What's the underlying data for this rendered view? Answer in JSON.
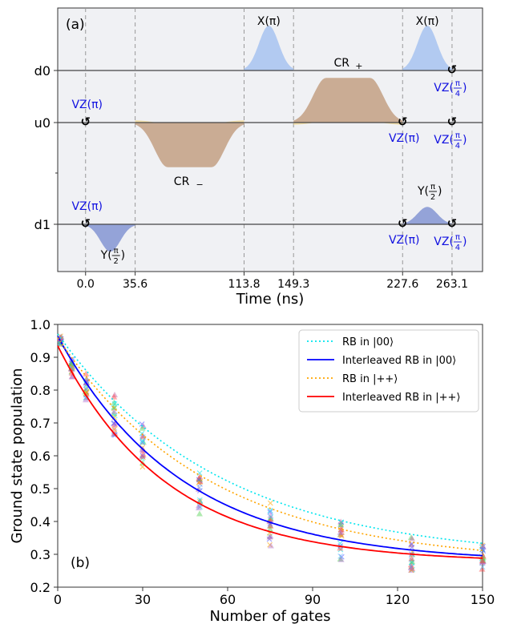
{
  "chart_data": [
    {
      "type": "area",
      "panel_label": "(a)",
      "xlabel": "Time (ns)",
      "ylabel": "",
      "xticks": [
        "0.0",
        "35.6",
        "113.8",
        "149.3",
        "227.6",
        "263.1"
      ],
      "xtick_values": [
        0.0,
        35.6,
        113.8,
        149.3,
        227.6,
        263.1
      ],
      "xlim": [
        -20,
        285
      ],
      "channels": [
        {
          "name": "d0"
        },
        {
          "name": "u0"
        },
        {
          "name": "d1"
        }
      ],
      "pulses": [
        {
          "channel": "d0",
          "label": "X(π)",
          "start": 113.8,
          "end": 149.3,
          "amp": 0.9,
          "color": "#aec7f0",
          "shape": "gaussian"
        },
        {
          "channel": "d0",
          "label": "X(π)",
          "start": 227.6,
          "end": 263.1,
          "amp": 0.9,
          "color": "#aec7f0",
          "shape": "gaussian"
        },
        {
          "channel": "u0",
          "label": "CR₋",
          "start": 35.6,
          "end": 113.8,
          "amp": -0.9,
          "color": "#c7a88e",
          "shape": "gaussian-square"
        },
        {
          "channel": "u0",
          "label": "CR₊",
          "start": 149.3,
          "end": 227.6,
          "amp": 0.9,
          "color": "#c7a88e",
          "shape": "gaussian-square"
        },
        {
          "channel": "d1",
          "label": "Y(π/2)",
          "start": 0.0,
          "end": 35.6,
          "amp": -0.55,
          "color": "#8e9ed6",
          "shape": "gaussian"
        },
        {
          "channel": "d1",
          "label": "Y(π/2)",
          "start": 227.6,
          "end": 263.1,
          "amp": 0.35,
          "color": "#8e9ed6",
          "shape": "gaussian"
        }
      ],
      "phase_annotations": [
        {
          "channel": "u0",
          "time": 0.0,
          "label": "VZ(π)",
          "position": "above"
        },
        {
          "channel": "d1",
          "time": 0.0,
          "label": "VZ(π)",
          "position": "above"
        },
        {
          "channel": "d0",
          "time": 263.1,
          "label": "VZ(π/4)",
          "position": "below"
        },
        {
          "channel": "u0",
          "time": 227.6,
          "label": "VZ(π)",
          "position": "below"
        },
        {
          "channel": "u0",
          "time": 263.1,
          "label": "VZ(π/4)",
          "position": "below"
        },
        {
          "channel": "d1",
          "time": 227.6,
          "label": "VZ(π)",
          "position": "below"
        },
        {
          "channel": "d1",
          "time": 263.1,
          "label": "VZ(π/4)",
          "position": "below"
        }
      ],
      "vz_label": "VZ(π)",
      "y_label_text": "Y(",
      "cr_minus_text": "CR",
      "cr_plus_text": "CR",
      "frac_pi": "π",
      "frac_2": "2",
      "frac_4": "4",
      "grid_verticals": "dashed at xtick times"
    },
    {
      "type": "scatter",
      "panel_label": "(b)",
      "xlabel": "Number of gates",
      "ylabel": "Ground state population",
      "xlim": [
        0,
        150
      ],
      "ylim": [
        0.2,
        1.0
      ],
      "xticks": [
        0,
        30,
        60,
        90,
        120,
        150
      ],
      "yticks": [
        0.2,
        0.3,
        0.4,
        0.5,
        0.6,
        0.7,
        0.8,
        0.9,
        1.0
      ],
      "legend_position": "top-right",
      "fit_curves": [
        {
          "name": "RB in |00⟩",
          "color": "#00e5ee",
          "style": "dotted",
          "A": 0.686,
          "p": 0.9825,
          "B": 0.285
        },
        {
          "name": "Interleaved RB in |00⟩",
          "color": "#0000ff",
          "style": "solid",
          "A": 0.69,
          "p": 0.9773,
          "B": 0.274
        },
        {
          "name": "RB in |++⟩",
          "color": "#ffa500",
          "style": "dotted",
          "A": 0.69,
          "p": 0.9815,
          "B": 0.27
        },
        {
          "name": "Interleaved RB in |++⟩",
          "color": "#ff0000",
          "style": "solid",
          "A": 0.66,
          "p": 0.9743,
          "B": 0.275
        }
      ],
      "gate_counts": [
        1,
        5,
        10,
        20,
        30,
        50,
        75,
        100,
        125,
        150
      ],
      "mean_population": [
        0.95,
        0.87,
        0.81,
        0.72,
        0.63,
        0.49,
        0.39,
        0.34,
        0.31,
        0.29
      ],
      "scatter_spread": [
        0.015,
        0.03,
        0.04,
        0.07,
        0.07,
        0.07,
        0.07,
        0.06,
        0.06,
        0.04
      ],
      "scatter_colors": [
        "#00e5ee",
        "#4fd04f",
        "#ffa500",
        "#ff4040",
        "#5555ff",
        "#b070d0",
        "#60c0ff",
        "#c060a0"
      ]
    }
  ]
}
